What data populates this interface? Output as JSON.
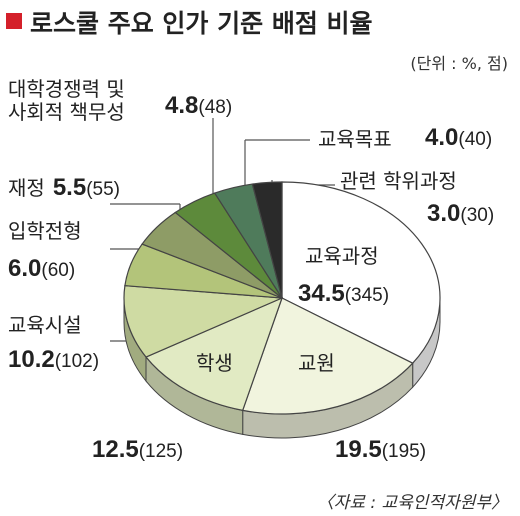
{
  "chart_data": {
    "type": "pie",
    "title": "로스쿨 주요 인가 기준 배점 비율",
    "subtitle": "(단위 : %, 점)",
    "source": "〈자료 : 교육인적자원부〉",
    "categories": [
      "교육과정",
      "교원",
      "학생",
      "교육시설",
      "입학전형",
      "재정",
      "대학경쟁력 및 사회적 책무성",
      "교육목표",
      "관련 학위과정"
    ],
    "values": [
      34.5,
      19.5,
      12.5,
      10.2,
      6.0,
      5.5,
      4.8,
      4.0,
      3.0
    ],
    "value_labels": [
      "34.5",
      "19.5",
      "12.5",
      "10.2",
      "6.0",
      "5.5",
      "4.8",
      "4.0",
      "3.0"
    ],
    "score_labels": [
      "(345)",
      "(195)",
      "(125)",
      "(102)",
      "(60)",
      "(55)",
      "(48)",
      "(40)",
      "(30)"
    ],
    "colors": [
      "#ffffff",
      "#f1f4de",
      "#e1eac3",
      "#cfdba3",
      "#b3c47a",
      "#8e9c66",
      "#5d8a3b",
      "#4f7b5b",
      "#2a2a2a"
    ]
  }
}
